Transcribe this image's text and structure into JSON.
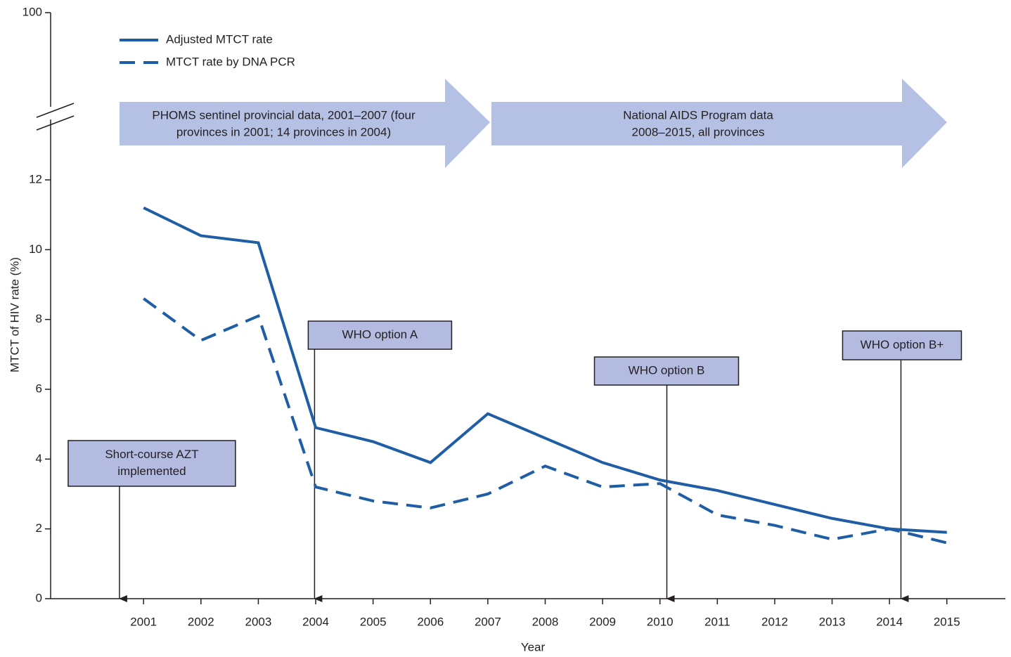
{
  "chart_data": {
    "type": "line",
    "y_label": "MTCT of HIV rate (%)",
    "x_label": "Year",
    "x": [
      2001,
      2002,
      2003,
      2004,
      2005,
      2006,
      2007,
      2008,
      2009,
      2010,
      2011,
      2012,
      2013,
      2014,
      2015
    ],
    "xlim": [
      1999.38,
      2016.02
    ],
    "xticks": [
      2001,
      2002,
      2003,
      2004,
      2005,
      2006,
      2007,
      2008,
      2009,
      2010,
      2011,
      2012,
      2013,
      2014,
      2015
    ],
    "ylim": [
      0,
      100
    ],
    "yticks": [
      0,
      2,
      4,
      6,
      8,
      10,
      12,
      100
    ],
    "axis_break": [
      12,
      100
    ],
    "legend": "top-left",
    "series": [
      {
        "name": "Adjusted MTCT rate",
        "color": "#1f5ea5",
        "style": "solid",
        "values": [
          11.2,
          10.4,
          10.2,
          4.9,
          4.5,
          3.9,
          5.3,
          4.6,
          3.9,
          3.4,
          3.1,
          2.7,
          2.3,
          2.0,
          1.9
        ]
      },
      {
        "name": "MTCT rate by DNA PCR",
        "color": "#1f5ea5",
        "style": "dashed",
        "values": [
          8.6,
          7.4,
          8.1,
          3.2,
          2.8,
          2.6,
          3.0,
          3.8,
          3.2,
          3.3,
          2.4,
          2.1,
          1.7,
          2.0,
          1.6
        ]
      }
    ],
    "periods": [
      {
        "lines": [
          "PHOMS sentinel provincial data, 2001–2007 (four",
          "provinces in 2001; 14 provinces in 2004)"
        ]
      },
      {
        "lines": [
          "National AIDS Program data",
          "2008–2015, all provinces"
        ]
      }
    ],
    "annotations": [
      {
        "lines": [
          "Short-course AZT",
          "implemented"
        ],
        "x": 2000.58
      },
      {
        "lines": [
          "WHO option A"
        ],
        "x": 2003.98
      },
      {
        "lines": [
          "WHO option B"
        ],
        "x": 2010.12
      },
      {
        "lines": [
          "WHO option B+"
        ],
        "x": 2014.2
      }
    ]
  }
}
